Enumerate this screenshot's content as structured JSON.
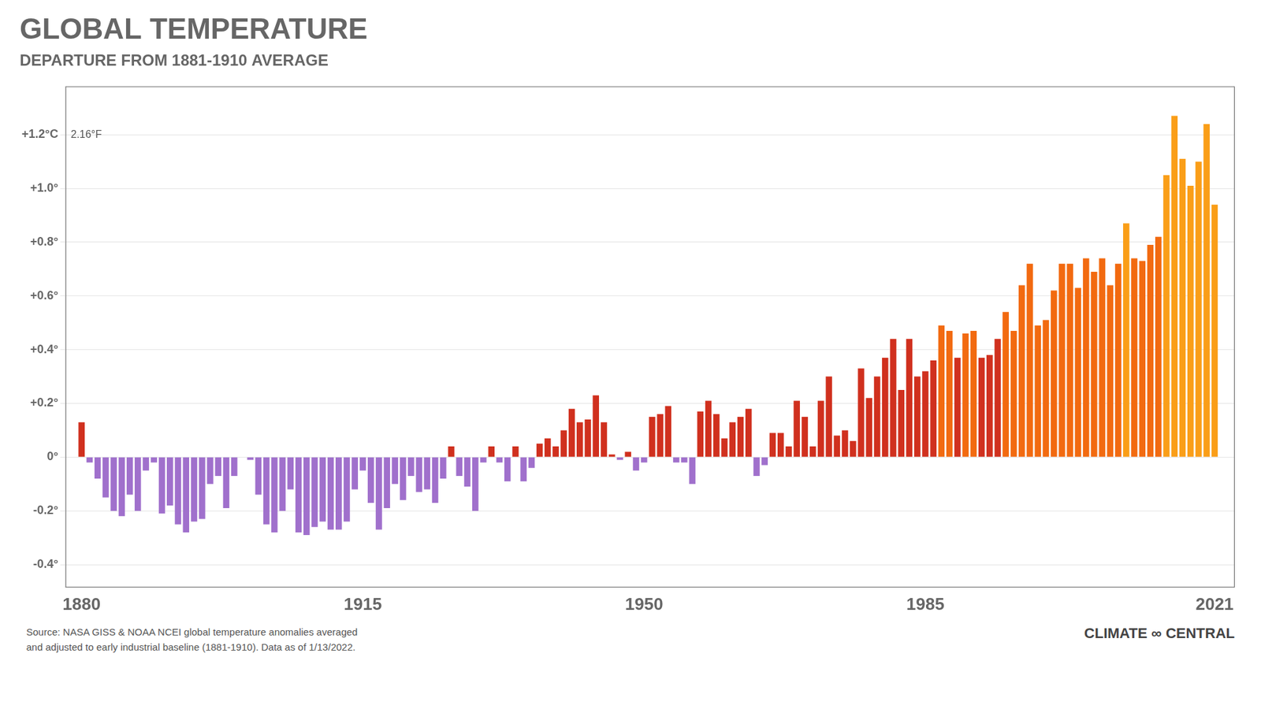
{
  "chart_data": {
    "type": "bar",
    "title": "GLOBAL TEMPERATURE",
    "subtitle": "DEPARTURE FROM 1881-1910 AVERAGE",
    "x": [
      1880,
      1881,
      1882,
      1883,
      1884,
      1885,
      1886,
      1887,
      1888,
      1889,
      1890,
      1891,
      1892,
      1893,
      1894,
      1895,
      1896,
      1897,
      1898,
      1899,
      1900,
      1901,
      1902,
      1903,
      1904,
      1905,
      1906,
      1907,
      1908,
      1909,
      1910,
      1911,
      1912,
      1913,
      1914,
      1915,
      1916,
      1917,
      1918,
      1919,
      1920,
      1921,
      1922,
      1923,
      1924,
      1925,
      1926,
      1927,
      1928,
      1929,
      1930,
      1931,
      1932,
      1933,
      1934,
      1935,
      1936,
      1937,
      1938,
      1939,
      1940,
      1941,
      1942,
      1943,
      1944,
      1945,
      1946,
      1947,
      1948,
      1949,
      1950,
      1951,
      1952,
      1953,
      1954,
      1955,
      1956,
      1957,
      1958,
      1959,
      1960,
      1961,
      1962,
      1963,
      1964,
      1965,
      1966,
      1967,
      1968,
      1969,
      1970,
      1971,
      1972,
      1973,
      1974,
      1975,
      1976,
      1977,
      1978,
      1979,
      1980,
      1981,
      1982,
      1983,
      1984,
      1985,
      1986,
      1987,
      1988,
      1989,
      1990,
      1991,
      1992,
      1993,
      1994,
      1995,
      1996,
      1997,
      1998,
      1999,
      2000,
      2001,
      2002,
      2003,
      2004,
      2005,
      2006,
      2007,
      2008,
      2009,
      2010,
      2011,
      2012,
      2013,
      2014,
      2015,
      2016,
      2017,
      2018,
      2019,
      2020,
      2021
    ],
    "values": [
      0.13,
      -0.02,
      -0.08,
      -0.15,
      -0.2,
      -0.22,
      -0.14,
      -0.2,
      -0.05,
      -0.02,
      -0.21,
      -0.18,
      -0.25,
      -0.28,
      -0.24,
      -0.23,
      -0.1,
      -0.07,
      -0.19,
      -0.07,
      0.0,
      -0.01,
      -0.14,
      -0.25,
      -0.28,
      -0.2,
      -0.12,
      -0.28,
      -0.29,
      -0.26,
      -0.24,
      -0.27,
      -0.27,
      -0.24,
      -0.12,
      -0.05,
      -0.17,
      -0.27,
      -0.19,
      -0.1,
      -0.16,
      -0.07,
      -0.13,
      -0.12,
      -0.17,
      -0.08,
      0.04,
      -0.07,
      -0.11,
      -0.2,
      -0.02,
      0.04,
      -0.02,
      -0.09,
      0.04,
      -0.09,
      -0.04,
      0.05,
      0.07,
      0.04,
      0.1,
      0.18,
      0.13,
      0.14,
      0.23,
      0.13,
      0.01,
      -0.01,
      0.02,
      -0.05,
      -0.02,
      0.15,
      0.16,
      0.19,
      -0.02,
      -0.02,
      -0.1,
      0.17,
      0.21,
      0.16,
      0.07,
      0.13,
      0.15,
      0.18,
      -0.07,
      -0.03,
      0.09,
      0.09,
      0.04,
      0.21,
      0.15,
      0.04,
      0.21,
      0.3,
      0.08,
      0.1,
      0.06,
      0.33,
      0.22,
      0.3,
      0.37,
      0.44,
      0.25,
      0.44,
      0.3,
      0.32,
      0.36,
      0.49,
      0.47,
      0.37,
      0.46,
      0.47,
      0.37,
      0.38,
      0.44,
      0.54,
      0.47,
      0.64,
      0.72,
      0.49,
      0.51,
      0.62,
      0.72,
      0.72,
      0.63,
      0.74,
      0.69,
      0.74,
      0.64,
      0.72,
      0.87,
      0.74,
      0.73,
      0.79,
      0.82,
      1.05,
      1.27,
      1.11,
      1.01,
      1.1,
      1.24,
      0.94
    ],
    "colors": [
      "#D0301E",
      "#A070CC",
      "#A070CC",
      "#A070CC",
      "#A070CC",
      "#A070CC",
      "#A070CC",
      "#A070CC",
      "#A070CC",
      "#A070CC",
      "#A070CC",
      "#A070CC",
      "#A070CC",
      "#A070CC",
      "#A070CC",
      "#A070CC",
      "#A070CC",
      "#A070CC",
      "#A070CC",
      "#A070CC",
      "#A070CC",
      "#A070CC",
      "#A070CC",
      "#A070CC",
      "#A070CC",
      "#A070CC",
      "#A070CC",
      "#A070CC",
      "#A070CC",
      "#A070CC",
      "#A070CC",
      "#A070CC",
      "#A070CC",
      "#A070CC",
      "#A070CC",
      "#A070CC",
      "#A070CC",
      "#A070CC",
      "#A070CC",
      "#A070CC",
      "#A070CC",
      "#A070CC",
      "#A070CC",
      "#A070CC",
      "#A070CC",
      "#A070CC",
      "#D0301E",
      "#A070CC",
      "#A070CC",
      "#A070CC",
      "#A070CC",
      "#D0301E",
      "#A070CC",
      "#A070CC",
      "#D0301E",
      "#A070CC",
      "#A070CC",
      "#D0301E",
      "#D0301E",
      "#D0301E",
      "#D0301E",
      "#D0301E",
      "#D0301E",
      "#D0301E",
      "#D0301E",
      "#D0301E",
      "#D0301E",
      "#A070CC",
      "#D0301E",
      "#A070CC",
      "#A070CC",
      "#D0301E",
      "#D0301E",
      "#D0301E",
      "#A070CC",
      "#A070CC",
      "#A070CC",
      "#D0301E",
      "#D0301E",
      "#D0301E",
      "#D0301E",
      "#D0301E",
      "#D0301E",
      "#D0301E",
      "#A070CC",
      "#A070CC",
      "#D0301E",
      "#D0301E",
      "#D0301E",
      "#D0301E",
      "#D0301E",
      "#D0301E",
      "#D0301E",
      "#D0301E",
      "#D0301E",
      "#D0301E",
      "#D0301E",
      "#D0301E",
      "#D0301E",
      "#D0301E",
      "#D0301E",
      "#D0301E",
      "#D0301E",
      "#D0301E",
      "#D0301E",
      "#D0301E",
      "#D0301E",
      "#F26A10",
      "#F26A10",
      "#D0301E",
      "#F26A10",
      "#F26A10",
      "#D0301E",
      "#D0301E",
      "#D0301E",
      "#F26A10",
      "#F26A10",
      "#F26A10",
      "#F26A10",
      "#F26A10",
      "#F26A10",
      "#F26A10",
      "#F26A10",
      "#F26A10",
      "#F26A10",
      "#F26A10",
      "#F26A10",
      "#F26A10",
      "#F26A10",
      "#F26A10",
      "#FA9E18",
      "#F26A10",
      "#F26A10",
      "#F26A10",
      "#F26A10",
      "#FA9E18",
      "#FA9E18",
      "#FA9E18",
      "#FA9E18",
      "#FA9E18",
      "#FA9E18",
      "#FA9E18"
    ],
    "xlim": [
      1878,
      2023.5
    ],
    "xticks": [
      1880,
      1915,
      1950,
      1985,
      2021
    ],
    "ylim": [
      -0.485,
      1.38
    ],
    "yticks": [
      {
        "value": -0.4,
        "label": "-0.4°"
      },
      {
        "value": -0.2,
        "label": "-0.2°"
      },
      {
        "value": 0.0,
        "label": "0°"
      },
      {
        "value": 0.2,
        "label": "+0.2°"
      },
      {
        "value": 0.4,
        "label": "+0.4°"
      },
      {
        "value": 0.6,
        "label": "+0.6°"
      },
      {
        "value": 0.8,
        "label": "+0.8°"
      },
      {
        "value": 1.0,
        "label": "+1.0°"
      },
      {
        "value": 1.2,
        "label": "+1.2°C"
      }
    ],
    "grid": "y",
    "annotations": [
      {
        "text": "2.16°F",
        "y": 1.2
      },
      {
        "text": "Source: NASA GISS & NOAA NCEI global temperature anomalies averaged\nand adjusted to early industrial baseline (1881-1910). Data as of 1/13/2022."
      },
      {
        "text": "CLIMATE ∞ CENTRAL"
      }
    ]
  }
}
